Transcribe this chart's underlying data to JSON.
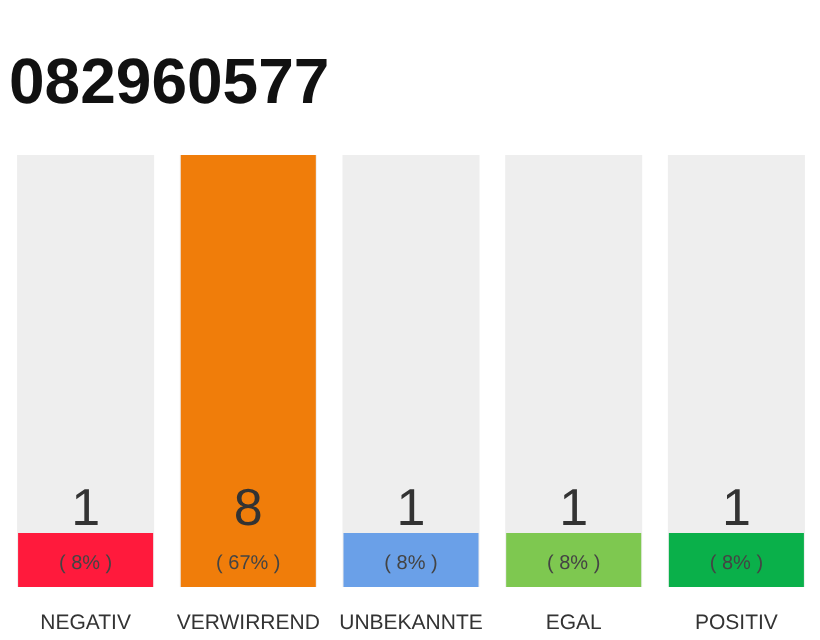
{
  "chart_data": {
    "type": "bar",
    "title": "082960577",
    "categories": [
      "NEGATIV",
      "VERWIRREND",
      "UNBEKANNTE",
      "EGAL",
      "POSITIV"
    ],
    "values": [
      1,
      8,
      1,
      1,
      1
    ],
    "colors": [
      "#ff1a3c",
      "#f07d0a",
      "#6aa0e8",
      "#7ec850",
      "#0ab04a"
    ],
    "ylim": [
      0,
      8
    ],
    "data_labels": true,
    "annotations": [
      {
        "text": "( 8% )",
        "x": "NEGATIV",
        "y": 0
      },
      {
        "text": "( 67% )",
        "x": "VERWIRREND",
        "y": 0
      },
      {
        "text": "( 8% )",
        "x": "UNBEKANNTE",
        "y": 0
      },
      {
        "text": "( 8% )",
        "x": "EGAL",
        "y": 0
      },
      {
        "text": "( 8% )",
        "x": "POSITIV",
        "y": 0
      }
    ]
  }
}
